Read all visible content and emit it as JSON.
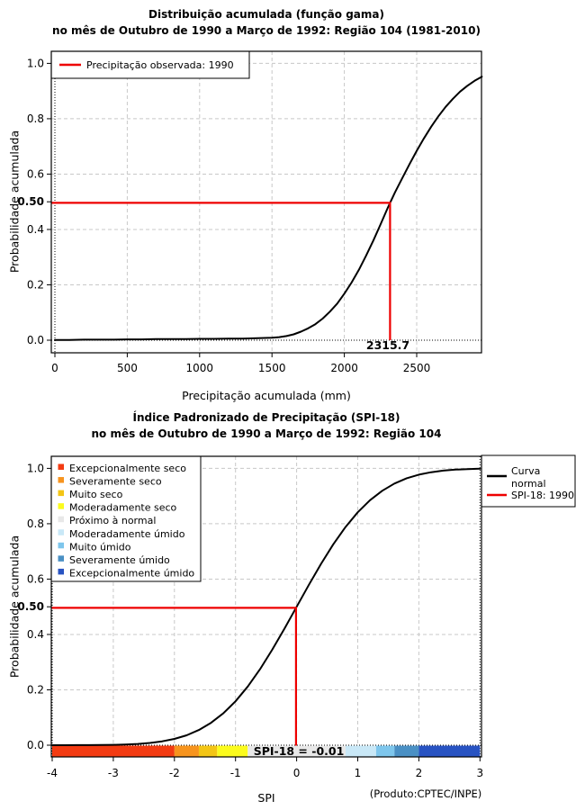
{
  "chart_data": [
    {
      "type": "line",
      "title": "Distribuição acumulada (função gama)",
      "subtitle": "no mês de Outubro de 1990 a Março de 1992: Região 104 (1981-2010)",
      "xlabel": "Precipitação acumulada (mm)",
      "ylabel": "Probabilidade acumulada",
      "xlim": [
        0,
        2950
      ],
      "ylim": [
        0,
        1
      ],
      "x_ticks": [
        0,
        500,
        1000,
        1500,
        2000,
        2500
      ],
      "y_ticks": [
        "0.0",
        "0.2",
        "0.4",
        "0.6",
        "0.8",
        "1.0"
      ],
      "special_y_tick": {
        "value": 0.5,
        "label": "0.50"
      },
      "grid": true,
      "legend_position": "top-left",
      "legend": [
        {
          "label": "Precipitação observada: 1990",
          "color": "#EE0000",
          "type": "line"
        }
      ],
      "series": [
        {
          "name": "Distribuição acumulada (função gama)",
          "color": "#000000",
          "points": [
            [
              0,
              0.001
            ],
            [
              100,
              0.001
            ],
            [
              200,
              0.002
            ],
            [
              300,
              0.002
            ],
            [
              400,
              0.002
            ],
            [
              500,
              0.003
            ],
            [
              600,
              0.003
            ],
            [
              700,
              0.004
            ],
            [
              800,
              0.004
            ],
            [
              900,
              0.004
            ],
            [
              1000,
              0.005
            ],
            [
              1100,
              0.005
            ],
            [
              1200,
              0.006
            ],
            [
              1300,
              0.006
            ],
            [
              1400,
              0.007
            ],
            [
              1450,
              0.008
            ],
            [
              1500,
              0.009
            ],
            [
              1550,
              0.011
            ],
            [
              1600,
              0.015
            ],
            [
              1650,
              0.021
            ],
            [
              1700,
              0.031
            ],
            [
              1750,
              0.043
            ],
            [
              1800,
              0.058
            ],
            [
              1850,
              0.078
            ],
            [
              1900,
              0.103
            ],
            [
              1950,
              0.132
            ],
            [
              2000,
              0.168
            ],
            [
              2050,
              0.208
            ],
            [
              2100,
              0.254
            ],
            [
              2150,
              0.305
            ],
            [
              2200,
              0.36
            ],
            [
              2250,
              0.418
            ],
            [
              2300,
              0.478
            ],
            [
              2315.7,
              0.496
            ],
            [
              2350,
              0.534
            ],
            [
              2400,
              0.585
            ],
            [
              2450,
              0.636
            ],
            [
              2500,
              0.684
            ],
            [
              2550,
              0.729
            ],
            [
              2600,
              0.771
            ],
            [
              2650,
              0.809
            ],
            [
              2700,
              0.843
            ],
            [
              2750,
              0.872
            ],
            [
              2800,
              0.898
            ],
            [
              2850,
              0.919
            ],
            [
              2900,
              0.937
            ],
            [
              2950,
              0.952
            ]
          ]
        }
      ],
      "reference": {
        "x": 2315.7,
        "y": 0.496,
        "label": "2315.7",
        "color": "#EE0000"
      }
    },
    {
      "type": "line",
      "title": "Índice Padronizado de Precipitação (SPI-18)",
      "subtitle": "no mês de Outubro de 1990 a Março de 1992: Região 104",
      "xlabel": "SPI",
      "ylabel": "Probabilidade acumulada",
      "xlim": [
        -4,
        3
      ],
      "ylim": [
        0,
        1
      ],
      "x_ticks": [
        -4,
        -3,
        -2,
        -1,
        0,
        1,
        2,
        3
      ],
      "y_ticks": [
        "0.0",
        "0.2",
        "0.4",
        "0.6",
        "0.8",
        "1.0"
      ],
      "special_y_tick": {
        "value": 0.5,
        "label": "0.50"
      },
      "grid": true,
      "classes_legend": [
        {
          "label": "Excepcionalmente seco",
          "color": "#F33B12"
        },
        {
          "label": "Severamente seco",
          "color": "#F7941E"
        },
        {
          "label": "Muito seco",
          "color": "#F3C515"
        },
        {
          "label": "Moderadamente seco",
          "color": "#FBFB1D"
        },
        {
          "label": "Próximo à normal",
          "color": "#E8E8E8"
        },
        {
          "label": "Moderadamente úmido",
          "color": "#C9E8F7"
        },
        {
          "label": "Muito úmido",
          "color": "#7EC6EC"
        },
        {
          "label": "Severamente úmido",
          "color": "#4A90C4"
        },
        {
          "label": "Excepcionalmente úmido",
          "color": "#2853C2"
        }
      ],
      "legend": [
        {
          "label_lines": [
            "Curva",
            "normal"
          ],
          "color": "#000000",
          "type": "line"
        },
        {
          "label_lines": [
            "SPI-18: 1990"
          ],
          "color": "#EE0000",
          "type": "line"
        }
      ],
      "series": [
        {
          "name": "Curva normal",
          "color": "#000000",
          "points": [
            [
              -4,
              3e-05
            ],
            [
              -3.8,
              0.0001
            ],
            [
              -3.6,
              0.0002
            ],
            [
              -3.4,
              0.0003
            ],
            [
              -3.2,
              0.0007
            ],
            [
              -3,
              0.0013
            ],
            [
              -2.8,
              0.0026
            ],
            [
              -2.6,
              0.0047
            ],
            [
              -2.4,
              0.0082
            ],
            [
              -2.2,
              0.0139
            ],
            [
              -2,
              0.0228
            ],
            [
              -1.8,
              0.0359
            ],
            [
              -1.6,
              0.0548
            ],
            [
              -1.4,
              0.0808
            ],
            [
              -1.2,
              0.1151
            ],
            [
              -1,
              0.1587
            ],
            [
              -0.8,
              0.2119
            ],
            [
              -0.6,
              0.2743
            ],
            [
              -0.4,
              0.3446
            ],
            [
              -0.2,
              0.4207
            ],
            [
              0,
              0.5
            ],
            [
              0.2,
              0.5793
            ],
            [
              0.4,
              0.6554
            ],
            [
              0.6,
              0.7257
            ],
            [
              0.8,
              0.7881
            ],
            [
              1,
              0.8413
            ],
            [
              1.2,
              0.8849
            ],
            [
              1.4,
              0.9192
            ],
            [
              1.6,
              0.9452
            ],
            [
              1.8,
              0.9641
            ],
            [
              2,
              0.9772
            ],
            [
              2.2,
              0.9861
            ],
            [
              2.4,
              0.9918
            ],
            [
              2.6,
              0.9953
            ],
            [
              2.8,
              0.9974
            ],
            [
              3,
              0.9987
            ]
          ]
        }
      ],
      "reference": {
        "x": -0.01,
        "y": 0.496,
        "color": "#EE0000"
      },
      "colorbar": {
        "label": "SPI-18 = -0.01",
        "segments": [
          {
            "from": -4,
            "to": -2,
            "color": "#F33B12"
          },
          {
            "from": -2,
            "to": -1.6,
            "color": "#F7941E"
          },
          {
            "from": -1.6,
            "to": -1.3,
            "color": "#F3C515"
          },
          {
            "from": -1.3,
            "to": -0.8,
            "color": "#FBFB1D"
          },
          {
            "from": -0.8,
            "to": 0.8,
            "color": "#E8E8E8"
          },
          {
            "from": 0.8,
            "to": 1.3,
            "color": "#C9E8F7"
          },
          {
            "from": 1.3,
            "to": 1.6,
            "color": "#7EC6EC"
          },
          {
            "from": 1.6,
            "to": 2,
            "color": "#4A90C4"
          },
          {
            "from": 2,
            "to": 3,
            "color": "#2853C2"
          }
        ]
      },
      "credit": "(Produto:CPTEC/INPE)"
    }
  ],
  "style_colors": {
    "curve": "#000000",
    "reference_line": "#EE0000",
    "grid": "#C8C8C8",
    "axis": "#000000",
    "background": "#FFFFFF"
  }
}
